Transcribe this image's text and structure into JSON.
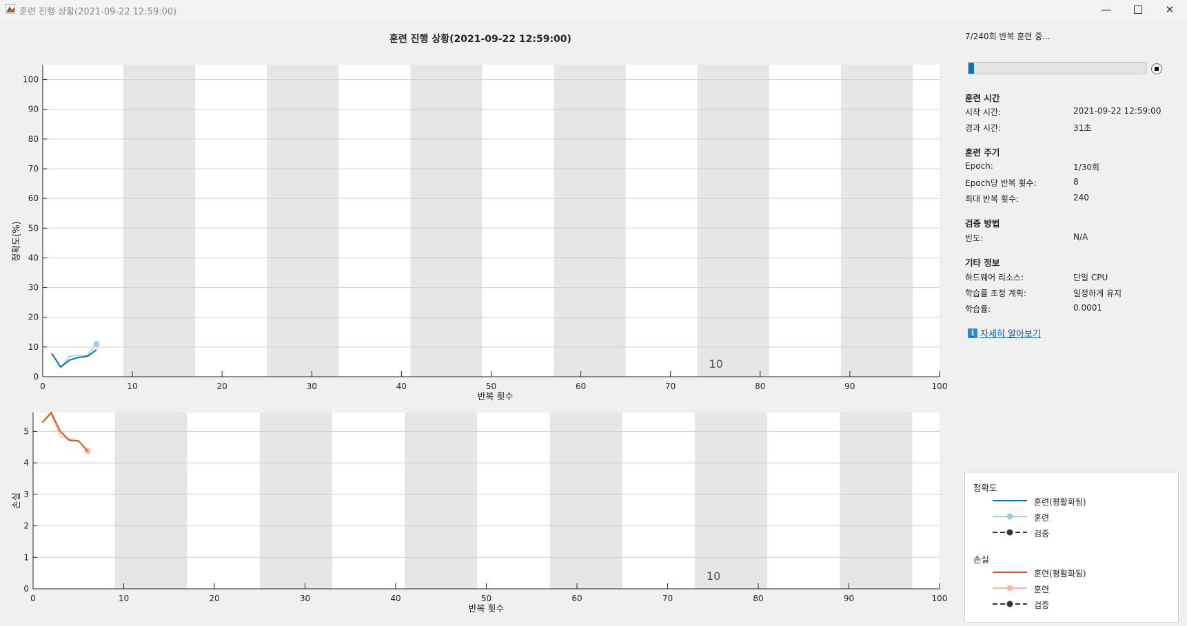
{
  "window": {
    "title": "훈련 진행 상황(2021-09-22 12:59:00)"
  },
  "plot_title": "훈련 진행 상황(2021-09-22 12:59:00)",
  "status": {
    "text": "7/240회 반복 훈련 중...",
    "progress_fraction": 0.0292
  },
  "info": {
    "training_time": {
      "heading": "훈련 시간",
      "rows": [
        {
          "key": "시작 시간:",
          "value": "2021-09-22 12:59:00"
        },
        {
          "key": "경과 시간:",
          "value": "31초"
        }
      ]
    },
    "training_cycle": {
      "heading": "훈련 주기",
      "rows": [
        {
          "key": "Epoch:",
          "value": "1/30회"
        },
        {
          "key": "Epoch당 반복 횟수:",
          "value": "8"
        },
        {
          "key": "최대 반복 횟수:",
          "value": "240"
        }
      ]
    },
    "validation": {
      "heading": "검증 방법",
      "rows": [
        {
          "key": "빈도:",
          "value": "N/A"
        }
      ]
    },
    "other": {
      "heading": "기타 정보",
      "rows": [
        {
          "key": "하드웨어 리소스:",
          "value": "단일 CPU"
        },
        {
          "key": "학습률 조정 계획:",
          "value": "일정하게 유지"
        },
        {
          "key": "학습률:",
          "value": "0.0001"
        }
      ]
    },
    "learn_more": "자세히 알아보기"
  },
  "legend": {
    "accuracy_title": "정확도",
    "loss_title": "손실",
    "smoothed": "훈련(평활화됨)",
    "train": "훈련",
    "validation": "검증"
  },
  "colors": {
    "acc_smoothed": "#0072bd",
    "acc_train": "#9ecbe8",
    "loss_smoothed": "#d95319",
    "loss_train": "#f2b9a3",
    "validation": "#333333",
    "epoch_band": "#e6e6e6"
  },
  "chart_data": [
    {
      "type": "line",
      "xlabel": "반복 횟수",
      "ylabel": "정확도(%)",
      "xlim": [
        0,
        100
      ],
      "ylim": [
        0,
        105
      ],
      "xticks": [
        0,
        10,
        20,
        30,
        40,
        50,
        60,
        70,
        80,
        90,
        100
      ],
      "yticks": [
        0,
        10,
        20,
        30,
        40,
        50,
        60,
        70,
        80,
        90,
        100
      ],
      "epoch_bands": [
        [
          9,
          17
        ],
        [
          25,
          33
        ],
        [
          41,
          49
        ],
        [
          57,
          65
        ],
        [
          73,
          81
        ],
        [
          89,
          97
        ]
      ],
      "epoch_label": {
        "text": "10",
        "x": 74
      },
      "series": [
        {
          "name": "훈련(평활화됨)",
          "x": [
            1,
            2,
            3,
            4,
            5,
            6
          ],
          "y": [
            7.8,
            3.3,
            5.6,
            6.5,
            6.9,
            9.1
          ]
        },
        {
          "name": "훈련",
          "x": [
            1,
            2,
            3,
            4,
            5,
            6
          ],
          "y": [
            7.8,
            3.0,
            6.9,
            7.2,
            7.3,
            11.0
          ]
        }
      ]
    },
    {
      "type": "line",
      "xlabel": "반복 횟수",
      "ylabel": "손실",
      "xlim": [
        0,
        100
      ],
      "ylim": [
        0,
        5.6
      ],
      "xticks": [
        0,
        10,
        20,
        30,
        40,
        50,
        60,
        70,
        80,
        90,
        100
      ],
      "yticks": [
        0,
        1,
        2,
        3,
        4,
        5
      ],
      "epoch_bands": [
        [
          9,
          17
        ],
        [
          25,
          33
        ],
        [
          41,
          49
        ],
        [
          57,
          65
        ],
        [
          73,
          81
        ],
        [
          89,
          97
        ]
      ],
      "epoch_label": {
        "text": "10",
        "x": 74
      },
      "series": [
        {
          "name": "훈련(평활화됨)",
          "x": [
            1,
            2,
            3,
            4,
            5,
            6
          ],
          "y": [
            5.28,
            5.6,
            5.0,
            4.72,
            4.7,
            4.38
          ]
        },
        {
          "name": "훈련",
          "x": [
            1,
            2,
            3,
            4,
            5,
            6
          ],
          "y": [
            5.28,
            5.55,
            4.85,
            4.75,
            4.7,
            4.38
          ]
        }
      ]
    }
  ]
}
